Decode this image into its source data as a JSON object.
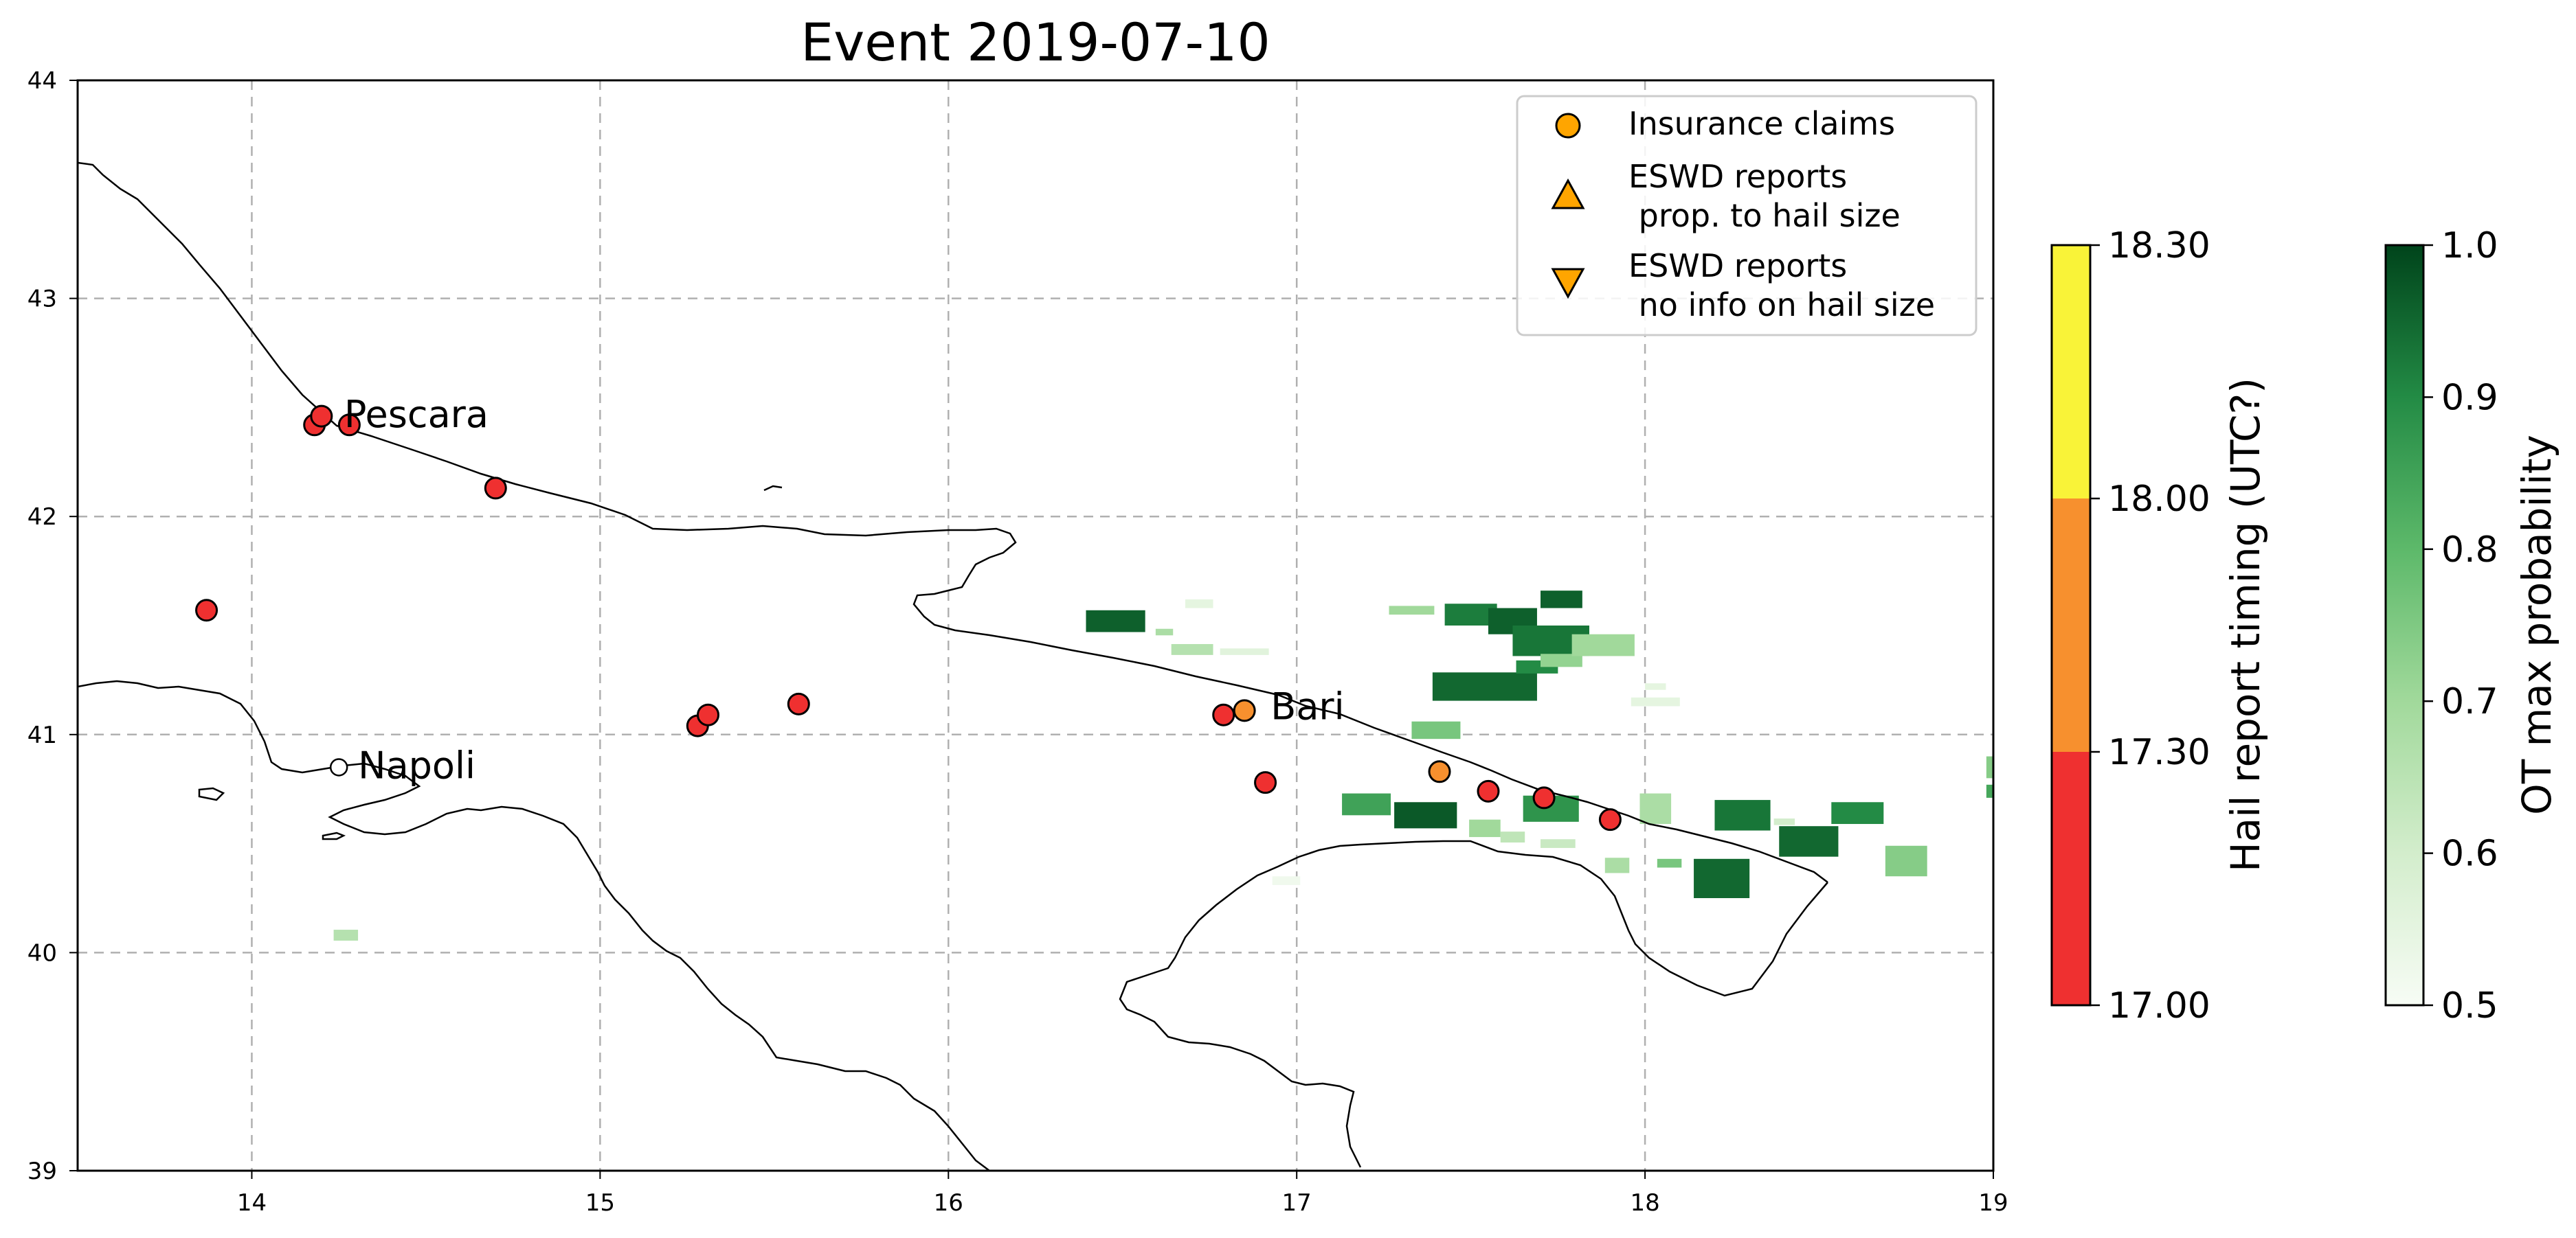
{
  "title": "Event 2019-07-10",
  "map": {
    "xlim": [
      13.5,
      19
    ],
    "ylim": [
      39,
      44
    ],
    "x_ticks": [
      "14",
      "15",
      "16",
      "17",
      "18",
      "19"
    ],
    "y_ticks": [
      "39",
      "40",
      "41",
      "42",
      "43",
      "44"
    ],
    "grid": true
  },
  "cities": [
    {
      "name": "Pescara",
      "lon": 14.21,
      "lat": 42.46,
      "marker": "none"
    },
    {
      "name": "Napoli",
      "lon": 14.25,
      "lat": 40.85,
      "marker": "white-circle"
    },
    {
      "name": "Bari",
      "lon": 16.87,
      "lat": 41.12,
      "marker": "none"
    }
  ],
  "hail_reports": [
    {
      "lon": 14.18,
      "lat": 42.42,
      "color": "#ef3030"
    },
    {
      "lon": 14.2,
      "lat": 42.46,
      "color": "#ef3030"
    },
    {
      "lon": 14.28,
      "lat": 42.42,
      "color": "#ef3030"
    },
    {
      "lon": 14.7,
      "lat": 42.13,
      "color": "#ef3030"
    },
    {
      "lon": 13.87,
      "lat": 41.57,
      "color": "#ef3030"
    },
    {
      "lon": 15.28,
      "lat": 41.04,
      "color": "#ef3030"
    },
    {
      "lon": 15.31,
      "lat": 41.09,
      "color": "#ef3030"
    },
    {
      "lon": 15.57,
      "lat": 41.14,
      "color": "#ef3030"
    },
    {
      "lon": 16.79,
      "lat": 41.09,
      "color": "#ef3030"
    },
    {
      "lon": 16.85,
      "lat": 41.11,
      "color": "#f7902e"
    },
    {
      "lon": 16.91,
      "lat": 40.78,
      "color": "#ef3030"
    },
    {
      "lon": 17.41,
      "lat": 40.83,
      "color": "#f7902e"
    },
    {
      "lon": 17.55,
      "lat": 40.74,
      "color": "#ef3030"
    },
    {
      "lon": 17.71,
      "lat": 40.71,
      "color": "#ef3030"
    },
    {
      "lon": 17.9,
      "lat": 40.61,
      "color": "#ef3030"
    }
  ],
  "ot_cells": [
    {
      "lon": 16.48,
      "lat": 41.52,
      "w": 0.17,
      "h": 0.1,
      "p": 0.96
    },
    {
      "lon": 16.62,
      "lat": 41.47,
      "w": 0.05,
      "h": 0.03,
      "p": 0.68
    },
    {
      "lon": 16.7,
      "lat": 41.39,
      "w": 0.12,
      "h": 0.05,
      "p": 0.66
    },
    {
      "lon": 16.85,
      "lat": 41.38,
      "w": 0.14,
      "h": 0.03,
      "p": 0.56
    },
    {
      "lon": 16.72,
      "lat": 41.6,
      "w": 0.08,
      "h": 0.04,
      "p": 0.55
    },
    {
      "lon": 17.33,
      "lat": 41.57,
      "w": 0.13,
      "h": 0.04,
      "p": 0.7
    },
    {
      "lon": 17.5,
      "lat": 41.55,
      "w": 0.15,
      "h": 0.1,
      "p": 0.92
    },
    {
      "lon": 17.62,
      "lat": 41.52,
      "w": 0.14,
      "h": 0.12,
      "p": 0.96
    },
    {
      "lon": 17.76,
      "lat": 41.62,
      "w": 0.12,
      "h": 0.08,
      "p": 0.96
    },
    {
      "lon": 17.73,
      "lat": 41.43,
      "w": 0.22,
      "h": 0.14,
      "p": 0.93
    },
    {
      "lon": 17.54,
      "lat": 41.22,
      "w": 0.3,
      "h": 0.13,
      "p": 0.95
    },
    {
      "lon": 17.69,
      "lat": 41.31,
      "w": 0.12,
      "h": 0.06,
      "p": 0.9
    },
    {
      "lon": 17.76,
      "lat": 41.34,
      "w": 0.12,
      "h": 0.06,
      "p": 0.72
    },
    {
      "lon": 17.88,
      "lat": 41.41,
      "w": 0.18,
      "h": 0.1,
      "p": 0.7
    },
    {
      "lon": 18.03,
      "lat": 41.15,
      "w": 0.14,
      "h": 0.04,
      "p": 0.55
    },
    {
      "lon": 18.03,
      "lat": 41.22,
      "w": 0.06,
      "h": 0.03,
      "p": 0.55
    },
    {
      "lon": 17.4,
      "lat": 41.02,
      "w": 0.14,
      "h": 0.08,
      "p": 0.76
    },
    {
      "lon": 17.2,
      "lat": 40.68,
      "w": 0.14,
      "h": 0.1,
      "p": 0.85
    },
    {
      "lon": 17.37,
      "lat": 40.63,
      "w": 0.18,
      "h": 0.12,
      "p": 0.97
    },
    {
      "lon": 17.54,
      "lat": 40.57,
      "w": 0.09,
      "h": 0.08,
      "p": 0.7
    },
    {
      "lon": 17.62,
      "lat": 40.53,
      "w": 0.07,
      "h": 0.05,
      "p": 0.64
    },
    {
      "lon": 17.73,
      "lat": 40.66,
      "w": 0.16,
      "h": 0.12,
      "p": 0.88
    },
    {
      "lon": 17.75,
      "lat": 40.5,
      "w": 0.1,
      "h": 0.04,
      "p": 0.62
    },
    {
      "lon": 17.92,
      "lat": 40.4,
      "w": 0.07,
      "h": 0.07,
      "p": 0.68
    },
    {
      "lon": 18.03,
      "lat": 40.66,
      "w": 0.09,
      "h": 0.14,
      "p": 0.68
    },
    {
      "lon": 18.28,
      "lat": 40.63,
      "w": 0.16,
      "h": 0.14,
      "p": 0.93
    },
    {
      "lon": 18.22,
      "lat": 40.34,
      "w": 0.16,
      "h": 0.18,
      "p": 0.95
    },
    {
      "lon": 18.07,
      "lat": 40.41,
      "w": 0.07,
      "h": 0.04,
      "p": 0.76
    },
    {
      "lon": 18.47,
      "lat": 40.51,
      "w": 0.17,
      "h": 0.14,
      "p": 0.95
    },
    {
      "lon": 18.4,
      "lat": 40.6,
      "w": 0.06,
      "h": 0.03,
      "p": 0.6
    },
    {
      "lon": 18.61,
      "lat": 40.64,
      "w": 0.15,
      "h": 0.1,
      "p": 0.9
    },
    {
      "lon": 18.75,
      "lat": 40.42,
      "w": 0.12,
      "h": 0.14,
      "p": 0.74
    },
    {
      "lon": 19.0,
      "lat": 40.85,
      "w": 0.04,
      "h": 0.1,
      "p": 0.74
    },
    {
      "lon": 19.0,
      "lat": 40.74,
      "w": 0.04,
      "h": 0.06,
      "p": 0.84
    },
    {
      "lon": 16.97,
      "lat": 40.33,
      "w": 0.08,
      "h": 0.04,
      "p": 0.52
    },
    {
      "lon": 14.27,
      "lat": 40.08,
      "w": 0.07,
      "h": 0.05,
      "p": 0.66
    }
  ],
  "legend": [
    {
      "symbol": "circle",
      "label": "Insurance claims",
      "color": "#ffa500"
    },
    {
      "symbol": "triangle-up",
      "label": "ESWD reports\n prop. to hail size",
      "color": "#ffa500"
    },
    {
      "symbol": "triangle-down",
      "label": "ESWD reports\n no info on hail size",
      "color": "#ffa500"
    }
  ],
  "colorbar_timing": {
    "label": "Hail report timing (UTC?)",
    "ticks": [
      "17.00",
      "17.30",
      "18.00",
      "18.30"
    ],
    "colors": [
      "#ef3030",
      "#f7902e",
      "#f9f338"
    ]
  },
  "colorbar_prob": {
    "label": "OT max probability",
    "ticks": [
      "0.5",
      "0.6",
      "0.7",
      "0.8",
      "0.9",
      "1.0"
    ],
    "range": [
      0.5,
      1.0
    ],
    "colors": [
      "#f7fcf5",
      "#00441b"
    ]
  }
}
